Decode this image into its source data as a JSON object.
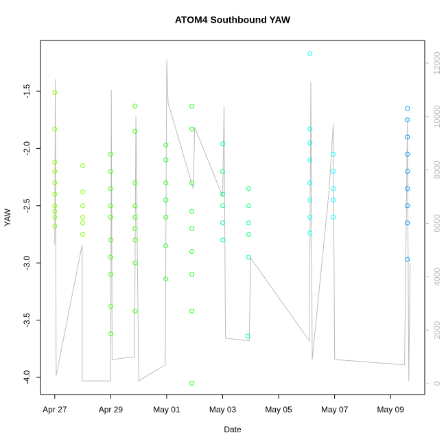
{
  "chart_data": {
    "type": "scatter",
    "title": "ATOM4 Southbound YAW",
    "xlabel": "Date",
    "ylabel": "YAW",
    "xlim": [
      -0.51,
      13.22
    ],
    "ylim": [
      -4.15,
      -1.056
    ],
    "y2lim": [
      -411,
      12848
    ],
    "xticks": [
      {
        "value": 0,
        "label": "Apr 27"
      },
      {
        "value": 2,
        "label": "Apr 29"
      },
      {
        "value": 4,
        "label": "May 01"
      },
      {
        "value": 6,
        "label": "May 03"
      },
      {
        "value": 8,
        "label": "May 05"
      },
      {
        "value": 10,
        "label": "May 07"
      },
      {
        "value": 12,
        "label": "May 09"
      }
    ],
    "yticks": [
      -1.5,
      {
        "value": -2,
        "label": "-2.0"
      },
      -2.5,
      {
        "value": -3,
        "label": "-3.0"
      },
      -3.5,
      {
        "value": -4,
        "label": "-4.0"
      }
    ],
    "y2ticks": [
      0,
      2000,
      4000,
      6000,
      8000,
      10000,
      12000
    ],
    "series": [
      {
        "color": "#80ff00",
        "x": [
          0,
          0,
          0,
          0,
          0,
          0,
          0,
          0,
          0,
          0,
          1,
          1,
          1,
          1,
          1,
          1
        ],
        "values": [
          -1.51,
          -1.83,
          -2.12,
          -2.2,
          -2.3,
          -2.4,
          -2.5,
          -2.55,
          -2.6,
          -2.68,
          -2.15,
          -2.38,
          -2.5,
          -2.6,
          -2.65,
          -2.75
        ]
      },
      {
        "color": "#40ff00",
        "x": [
          2,
          2,
          2,
          2,
          2,
          2,
          2,
          2,
          2,
          2,
          2.87,
          2.87,
          2.87,
          2.87,
          2.87,
          2.87,
          2.87,
          2.87,
          2.87
        ],
        "values": [
          -2.05,
          -2.2,
          -2.35,
          -2.5,
          -2.6,
          -2.8,
          -2.95,
          -3.1,
          -3.38,
          -3.62,
          -1.63,
          -1.85,
          -2.3,
          -2.5,
          -2.6,
          -2.7,
          -2.8,
          -3.0,
          -3.42
        ]
      },
      {
        "color": "#20ff20",
        "x": [
          3.97,
          3.97,
          3.97,
          3.97,
          3.97,
          3.97,
          3.97,
          4.9,
          4.9,
          4.9,
          4.9,
          4.9,
          4.9,
          4.9,
          4.9,
          4.9
        ],
        "values": [
          -1.97,
          -2.1,
          -2.3,
          -2.45,
          -2.6,
          -2.85,
          -3.14,
          -1.63,
          -1.83,
          -2.3,
          -2.55,
          -2.7,
          -2.9,
          -3.1,
          -3.42,
          -4.05
        ]
      },
      {
        "color": "#00ff80",
        "x": [
          6,
          6,
          6,
          6,
          6,
          6,
          6.9,
          6.93,
          6.93,
          6.93,
          6.93,
          6.93
        ],
        "values": [
          -1.96,
          -2.2,
          -2.4,
          -2.5,
          -2.65,
          -2.8,
          -3.64,
          -2.35,
          -2.5,
          -2.65,
          -2.75,
          -2.95
        ]
      },
      {
        "color": "#00ffff",
        "x": [
          9.12,
          9.12,
          9.12,
          9.12,
          9.12,
          9.12,
          9.12,
          9.12,
          9.95,
          9.95,
          9.95,
          9.95,
          9.95
        ],
        "values": [
          -1.17,
          -1.83,
          -1.95,
          -2.1,
          -2.3,
          -2.45,
          -2.6,
          -2.74,
          -2.05,
          -2.2,
          -2.35,
          -2.45,
          -2.6
        ]
      },
      {
        "color": "#0099ff",
        "x": [
          12.6,
          12.6,
          12.6,
          12.6,
          12.6,
          12.6,
          12.6,
          12.6,
          12.6
        ],
        "values": [
          -1.65,
          -1.75,
          -1.9,
          -2.05,
          -2.2,
          -2.35,
          -2.5,
          -2.65,
          -2.97
        ]
      },
      {
        "type": "line",
        "axis": "y2",
        "color": "#bbbbbb",
        "x": [
          0,
          0.02,
          0.05,
          0.98,
          0.98,
          2,
          2.02,
          2.05,
          2.85,
          2.9,
          3,
          3.95,
          4,
          4.05,
          4.95,
          5,
          6,
          6.05,
          6.1,
          6.95,
          7,
          9.1,
          9.15,
          9.2,
          9.8,
          9.95,
          10,
          12.5,
          12.6,
          12.65,
          12.7
        ],
        "values": [
          5200,
          11400,
          300,
          5200,
          100,
          100,
          11000,
          900,
          1000,
          10000,
          100,
          700,
          12100,
          10500,
          7300,
          9600,
          7000,
          10400,
          1700,
          1600,
          4700,
          1600,
          11300,
          900,
          7200,
          9700,
          900,
          700,
          9900,
          100,
          4500
        ]
      }
    ]
  }
}
